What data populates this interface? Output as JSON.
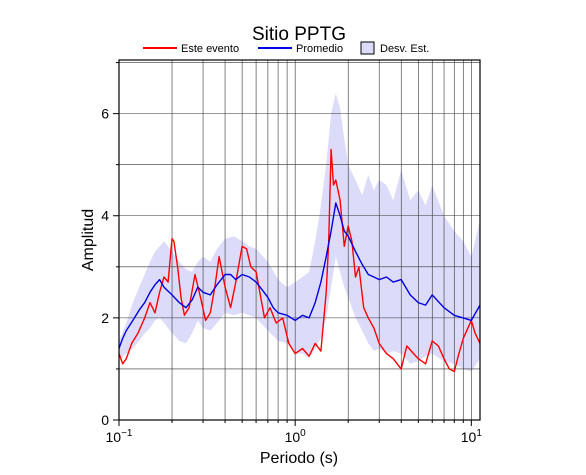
{
  "chart_data": {
    "type": "line",
    "title": "Sitio PPTG",
    "xlabel": "Periodo (s)",
    "ylabel": "Amplitud",
    "xscale": "log",
    "xlim": [
      0.1,
      11.2
    ],
    "ylim": [
      0,
      7.05
    ],
    "xticks": [
      {
        "value": 0.1,
        "base": "10",
        "exp": "−1"
      },
      {
        "value": 1,
        "base": "10",
        "exp": "0"
      },
      {
        "value": 10,
        "base": "10",
        "exp": "1"
      }
    ],
    "yticks": [
      {
        "value": 0,
        "label": "0"
      },
      {
        "value": 2,
        "label": "2"
      },
      {
        "value": 4,
        "label": "4"
      },
      {
        "value": 6,
        "label": "6"
      }
    ],
    "grid": true,
    "legend_position": "top",
    "legend": [
      {
        "label": "Este evento",
        "kind": "line",
        "color": "#ff0000"
      },
      {
        "label": "Promedio",
        "kind": "line",
        "color": "#0000e0"
      },
      {
        "label": "Desv. Est.",
        "kind": "area",
        "color": "#dcdcfa"
      }
    ],
    "series": [
      {
        "name": "Este evento",
        "color": "#ff0000",
        "x": [
          0.1,
          0.105,
          0.11,
          0.118,
          0.128,
          0.14,
          0.15,
          0.16,
          0.17,
          0.18,
          0.19,
          0.2,
          0.205,
          0.215,
          0.225,
          0.235,
          0.25,
          0.27,
          0.29,
          0.31,
          0.33,
          0.35,
          0.37,
          0.4,
          0.43,
          0.46,
          0.5,
          0.53,
          0.56,
          0.6,
          0.63,
          0.67,
          0.72,
          0.78,
          0.85,
          0.92,
          1.0,
          1.1,
          1.2,
          1.3,
          1.4,
          1.5,
          1.55,
          1.6,
          1.65,
          1.7,
          1.8,
          1.9,
          2.0,
          2.1,
          2.2,
          2.3,
          2.45,
          2.6,
          2.8,
          3.0,
          3.3,
          3.6,
          4.0,
          4.3,
          4.7,
          5.0,
          5.5,
          6.0,
          6.5,
          7.0,
          7.5,
          8.0,
          8.5,
          9.0,
          10.0,
          10.5,
          11.2
        ],
        "y": [
          1.3,
          1.1,
          1.2,
          1.5,
          1.7,
          2.0,
          2.3,
          2.1,
          2.5,
          2.8,
          2.7,
          3.55,
          3.5,
          3.0,
          2.4,
          2.05,
          2.2,
          2.85,
          2.4,
          1.95,
          2.1,
          2.6,
          3.2,
          2.6,
          2.2,
          2.7,
          3.4,
          3.35,
          3.0,
          2.9,
          2.5,
          2.0,
          2.2,
          1.9,
          2.0,
          1.5,
          1.3,
          1.4,
          1.25,
          1.5,
          1.35,
          2.5,
          3.5,
          5.3,
          4.6,
          4.7,
          4.3,
          3.4,
          3.8,
          3.5,
          2.8,
          3.0,
          2.2,
          2.0,
          1.8,
          1.5,
          1.3,
          1.2,
          1.0,
          1.45,
          1.3,
          1.2,
          1.1,
          1.55,
          1.45,
          1.2,
          1.0,
          0.95,
          1.3,
          1.6,
          1.95,
          1.7,
          1.5
        ]
      },
      {
        "name": "Promedio",
        "color": "#0000e0",
        "x": [
          0.1,
          0.105,
          0.11,
          0.12,
          0.13,
          0.14,
          0.15,
          0.16,
          0.17,
          0.18,
          0.2,
          0.22,
          0.24,
          0.26,
          0.28,
          0.3,
          0.33,
          0.36,
          0.4,
          0.43,
          0.46,
          0.5,
          0.55,
          0.6,
          0.65,
          0.7,
          0.75,
          0.8,
          0.9,
          1.0,
          1.1,
          1.2,
          1.3,
          1.4,
          1.5,
          1.6,
          1.7,
          1.8,
          1.9,
          2.0,
          2.2,
          2.4,
          2.6,
          2.8,
          3.0,
          3.3,
          3.6,
          4.0,
          4.5,
          5.0,
          5.5,
          6.0,
          7.0,
          8.0,
          9.0,
          10.0,
          11.2
        ],
        "y": [
          1.4,
          1.6,
          1.75,
          1.95,
          2.15,
          2.3,
          2.5,
          2.65,
          2.75,
          2.6,
          2.45,
          2.3,
          2.2,
          2.35,
          2.6,
          2.5,
          2.45,
          2.65,
          2.85,
          2.85,
          2.75,
          2.85,
          2.8,
          2.7,
          2.55,
          2.4,
          2.2,
          2.1,
          2.05,
          1.95,
          2.05,
          2.0,
          2.3,
          2.7,
          3.2,
          3.7,
          4.25,
          4.0,
          3.7,
          3.6,
          3.3,
          3.05,
          2.85,
          2.8,
          2.75,
          2.8,
          2.7,
          2.75,
          2.45,
          2.3,
          2.25,
          2.45,
          2.2,
          2.05,
          2.0,
          1.95,
          2.25
        ]
      }
    ],
    "band": {
      "name": "Desv. Est.",
      "color": "#dcdcfa",
      "x": [
        0.1,
        0.11,
        0.12,
        0.13,
        0.14,
        0.15,
        0.16,
        0.17,
        0.18,
        0.2,
        0.22,
        0.24,
        0.26,
        0.28,
        0.3,
        0.33,
        0.36,
        0.4,
        0.45,
        0.5,
        0.55,
        0.6,
        0.7,
        0.8,
        0.9,
        1.0,
        1.1,
        1.2,
        1.3,
        1.4,
        1.5,
        1.6,
        1.7,
        1.8,
        1.9,
        2.0,
        2.2,
        2.4,
        2.6,
        2.8,
        3.0,
        3.3,
        3.6,
        4.0,
        4.5,
        5.0,
        5.5,
        6.0,
        7.0,
        8.0,
        9.0,
        10.0,
        11.2
      ],
      "upper": [
        1.55,
        1.9,
        2.3,
        2.6,
        2.85,
        3.1,
        3.3,
        3.4,
        3.5,
        3.3,
        3.1,
        2.95,
        2.9,
        3.1,
        3.2,
        3.1,
        3.35,
        3.55,
        3.6,
        3.5,
        3.4,
        3.35,
        3.1,
        2.75,
        2.6,
        2.7,
        2.8,
        2.9,
        3.5,
        4.2,
        5.0,
        6.0,
        6.4,
        6.1,
        5.5,
        5.0,
        4.7,
        4.4,
        4.8,
        4.5,
        4.7,
        4.6,
        4.3,
        4.9,
        4.3,
        4.5,
        4.2,
        4.6,
        4.0,
        3.7,
        3.5,
        3.2,
        3.9
      ],
      "lower": [
        1.2,
        1.3,
        1.4,
        1.55,
        1.7,
        1.8,
        1.95,
        2.0,
        1.9,
        1.7,
        1.55,
        1.5,
        1.7,
        1.95,
        1.8,
        1.75,
        1.9,
        2.1,
        2.05,
        2.1,
        2.05,
        2.0,
        1.75,
        1.55,
        1.5,
        1.3,
        1.3,
        1.2,
        1.4,
        1.6,
        2.0,
        2.6,
        3.2,
        2.9,
        2.6,
        2.4,
        2.0,
        1.75,
        1.5,
        1.35,
        1.4,
        1.3,
        1.35,
        1.3,
        1.1,
        1.15,
        1.25,
        1.3,
        1.15,
        1.1,
        1.0,
        0.95,
        1.2
      ]
    }
  }
}
